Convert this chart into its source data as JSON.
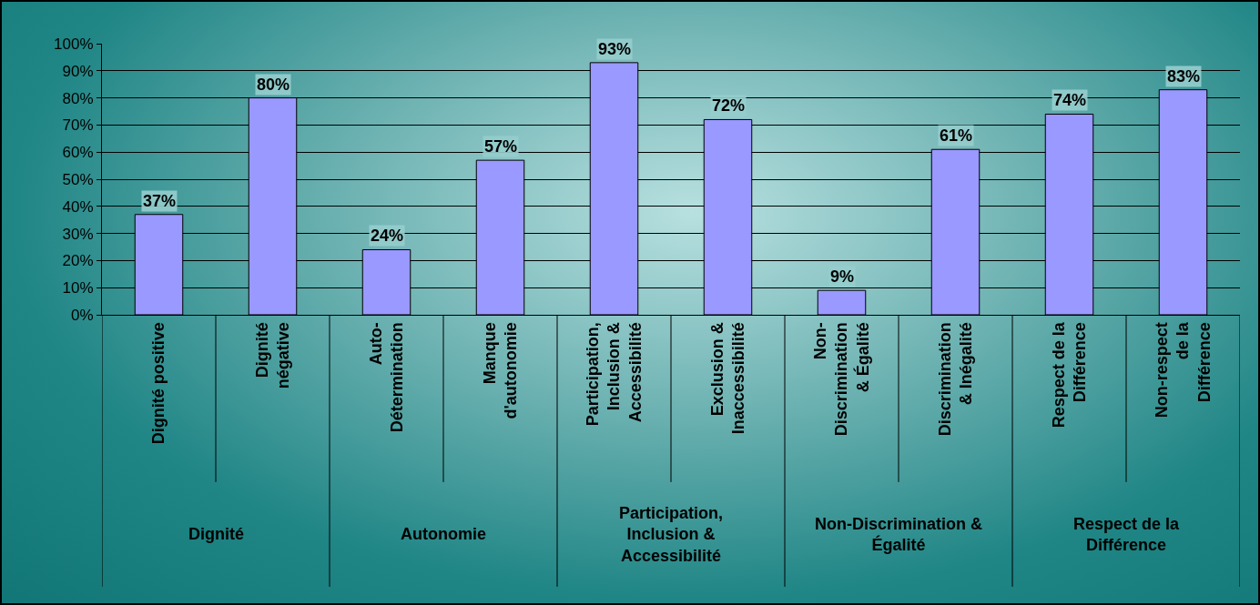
{
  "chart_data": {
    "type": "bar",
    "categories": [
      "Dignité positive",
      "Dignité\nnégative",
      "Auto-\nDétermination",
      "Manque\nd'autonomie",
      "Participation,\nInclusion &\nAccessibilité",
      "Exclusion &\nInaccessibilité",
      "Non-\nDiscrimination\n& Égalité",
      "Discrimination\n& Inégalité",
      "Respect de la\nDifférence",
      "Non-respect\nde la\nDifférence"
    ],
    "values": [
      37,
      80,
      24,
      57,
      93,
      72,
      9,
      61,
      74,
      83
    ],
    "value_labels": [
      "37%",
      "80%",
      "24%",
      "57%",
      "93%",
      "72%",
      "9%",
      "61%",
      "74%",
      "83%"
    ],
    "color": "#9999ff",
    "ylim": [
      0,
      100
    ],
    "yticks": [
      {
        "value": 0,
        "label": "0%"
      },
      {
        "value": 10,
        "label": "10%"
      },
      {
        "value": 20,
        "label": "20%"
      },
      {
        "value": 30,
        "label": "30%"
      },
      {
        "value": 40,
        "label": "40%"
      },
      {
        "value": 50,
        "label": "50%"
      },
      {
        "value": 60,
        "label": "60%"
      },
      {
        "value": 70,
        "label": "70%"
      },
      {
        "value": 80,
        "label": "80%"
      },
      {
        "value": 90,
        "label": "90%"
      },
      {
        "value": 100,
        "label": "100%"
      }
    ],
    "grid": "y",
    "annotations": [
      "Dignité",
      "Autonomie",
      "Participation,\nInclusion &\nAccessibilité",
      "Non-Discrimination &\nÉgalité",
      "Respect de la\nDifférence"
    ]
  }
}
